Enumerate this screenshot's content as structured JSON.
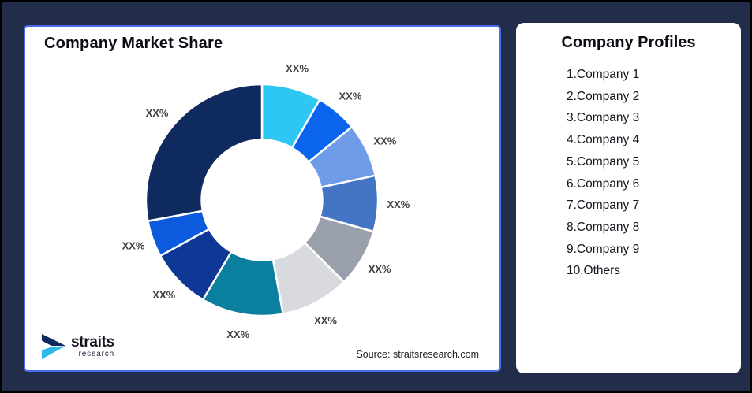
{
  "frame": {
    "background": "#222D4B",
    "outer_border": "#000000"
  },
  "chart_card": {
    "title": "Company Market Share",
    "source_note": "Source: straitsresearch.com",
    "border_color": "#4A6DE5"
  },
  "chart_data": {
    "type": "pie",
    "subtype": "donut",
    "title": "Company Market Share",
    "inner_radius_ratio": 0.52,
    "start_angle_deg": 0,
    "label_color": "#3F4040",
    "gap_color": "#FFFFFF",
    "note": "all slice labels are XX% placeholders; values are percent of ring estimated from arc angles",
    "segments": [
      {
        "label": "XX%",
        "value": 8.3,
        "color": "#2EC6F2"
      },
      {
        "label": "XX%",
        "value": 5.8,
        "color": "#0A64EE"
      },
      {
        "label": "XX%",
        "value": 7.5,
        "color": "#6F9CE8"
      },
      {
        "label": "XX%",
        "value": 7.8,
        "color": "#4474C4"
      },
      {
        "label": "XX%",
        "value": 8.1,
        "color": "#9AA0AB"
      },
      {
        "label": "XX%",
        "value": 9.6,
        "color": "#D8DADF"
      },
      {
        "label": "XX%",
        "value": 11.4,
        "color": "#0B7F9E"
      },
      {
        "label": "XX%",
        "value": 8.5,
        "color": "#0F3795"
      },
      {
        "label": "XX%",
        "value": 5.1,
        "color": "#0C5BDF"
      },
      {
        "label": "XX%",
        "value": 27.9,
        "color": "#0E2A5E"
      }
    ]
  },
  "logo": {
    "brand": "straits",
    "sub": "research",
    "mark_navy": "#0E2A5E",
    "mark_cyan": "#2FB7EA"
  },
  "profiles": {
    "title": "Company Profiles",
    "items": [
      "1.Company 1",
      "2.Company 2",
      "3.Company 3",
      "4.Company 4",
      "5.Company 5",
      "6.Company 6",
      "7.Company 7",
      "8.Company 8",
      "9.Company 9",
      "10.Others"
    ]
  }
}
